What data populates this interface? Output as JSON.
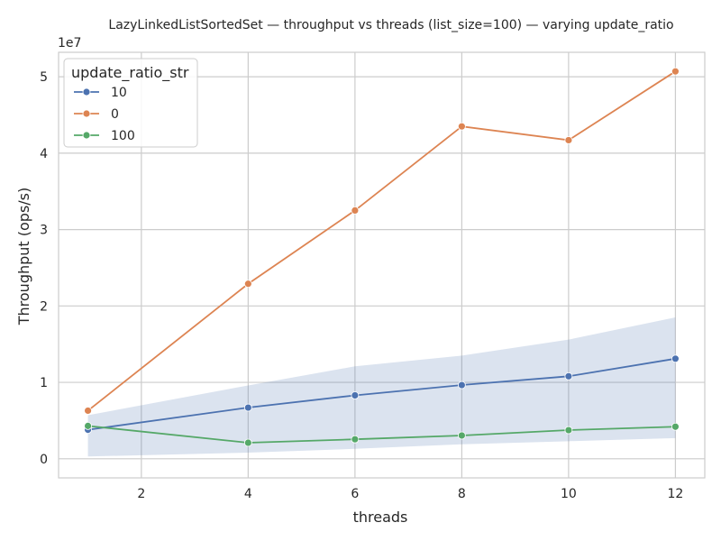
{
  "chart_data": {
    "type": "line",
    "title": "LazyLinkedListSortedSet — throughput vs threads (list_size=100) — varying update_ratio",
    "xlabel": "threads",
    "ylabel": "Throughput (ops/s)",
    "y_offset_label": "1e7",
    "xlim": [
      0.45,
      12.55
    ],
    "ylim": [
      -0.25,
      5.32
    ],
    "y_scale_multiplier": 10000000,
    "x_ticks": [
      2,
      4,
      6,
      8,
      10,
      12
    ],
    "y_ticks": [
      0,
      1,
      2,
      3,
      4,
      5
    ],
    "grid": true,
    "legend": {
      "title": "update_ratio_str",
      "placement": "top-left"
    },
    "x": [
      1,
      4,
      6,
      8,
      10,
      12
    ],
    "series": [
      {
        "name": "10",
        "color": "#4c72b0",
        "values": [
          0.38,
          0.67,
          0.83,
          0.965,
          1.08,
          1.31
        ],
        "ci_low": [
          0.03,
          0.08,
          0.13,
          0.19,
          0.23,
          0.27
        ],
        "ci_high": [
          0.57,
          0.96,
          1.21,
          1.35,
          1.56,
          1.85
        ]
      },
      {
        "name": "0",
        "color": "#dd8452",
        "values": [
          0.63,
          2.29,
          3.25,
          4.35,
          4.17,
          5.07
        ]
      },
      {
        "name": "100",
        "color": "#55a868",
        "values": [
          0.43,
          0.21,
          0.255,
          0.305,
          0.375,
          0.42
        ]
      }
    ]
  }
}
